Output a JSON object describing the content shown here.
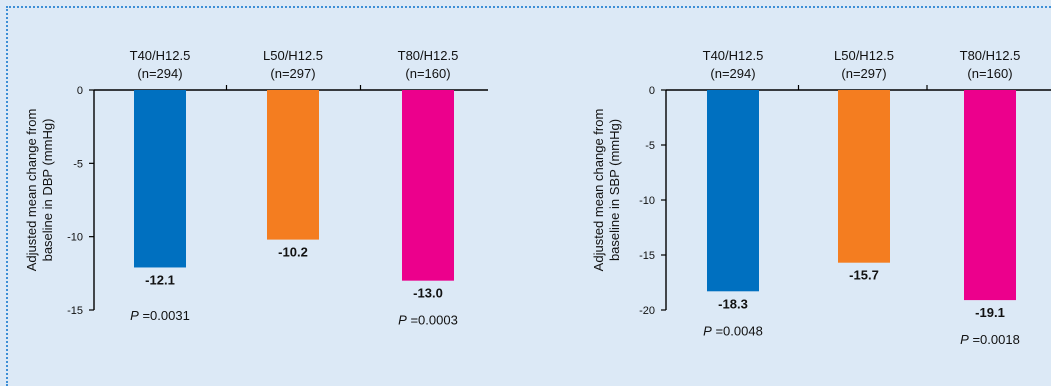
{
  "chart_data": [
    {
      "type": "bar",
      "categories": [
        "T40/H12.5",
        "L50/H12.5",
        "T80/H12.5"
      ],
      "n_labels": [
        "(n=294)",
        "(n=297)",
        "(n=160)"
      ],
      "values": [
        -12.1,
        -10.2,
        -13.0
      ],
      "value_labels": [
        "-12.1",
        "-10.2",
        "-13.0"
      ],
      "colors": [
        "#0070c0",
        "#f47d20",
        "#ec008c"
      ],
      "ylabel_line1": "Adjusted mean change from",
      "ylabel_line2": "baseline in DBP (mmHg)",
      "ylim": [
        -15,
        0
      ],
      "yticks": [
        0,
        -5,
        -10,
        -15
      ],
      "ytick_labels": [
        "0",
        "-5",
        "-10",
        "-15"
      ],
      "pvalues": [
        {
          "category": "T40/H12.5",
          "prefix": "P",
          "text": " =0.0031"
        },
        {
          "category": "T80/H12.5",
          "prefix": "P",
          "text": " =0.0003"
        }
      ]
    },
    {
      "type": "bar",
      "categories": [
        "T40/H12.5",
        "L50/H12.5",
        "T80/H12.5"
      ],
      "n_labels": [
        "(n=294)",
        "(n=297)",
        "(n=160)"
      ],
      "values": [
        -18.3,
        -15.7,
        -19.1
      ],
      "value_labels": [
        "-18.3",
        "-15.7",
        "-19.1"
      ],
      "colors": [
        "#0070c0",
        "#f47d20",
        "#ec008c"
      ],
      "ylabel_line1": "Adjusted mean change from",
      "ylabel_line2": "baseline in SBP (mmHg)",
      "ylim": [
        -20,
        0
      ],
      "yticks": [
        0,
        -5,
        -10,
        -15,
        -20
      ],
      "ytick_labels": [
        "0",
        "-5",
        "-10",
        "-15",
        "-20"
      ],
      "pvalues": [
        {
          "category": "T40/H12.5",
          "prefix": "P",
          "text": " =0.0048"
        },
        {
          "category": "T80/H12.5",
          "prefix": "P",
          "text": " =0.0018"
        }
      ]
    }
  ]
}
